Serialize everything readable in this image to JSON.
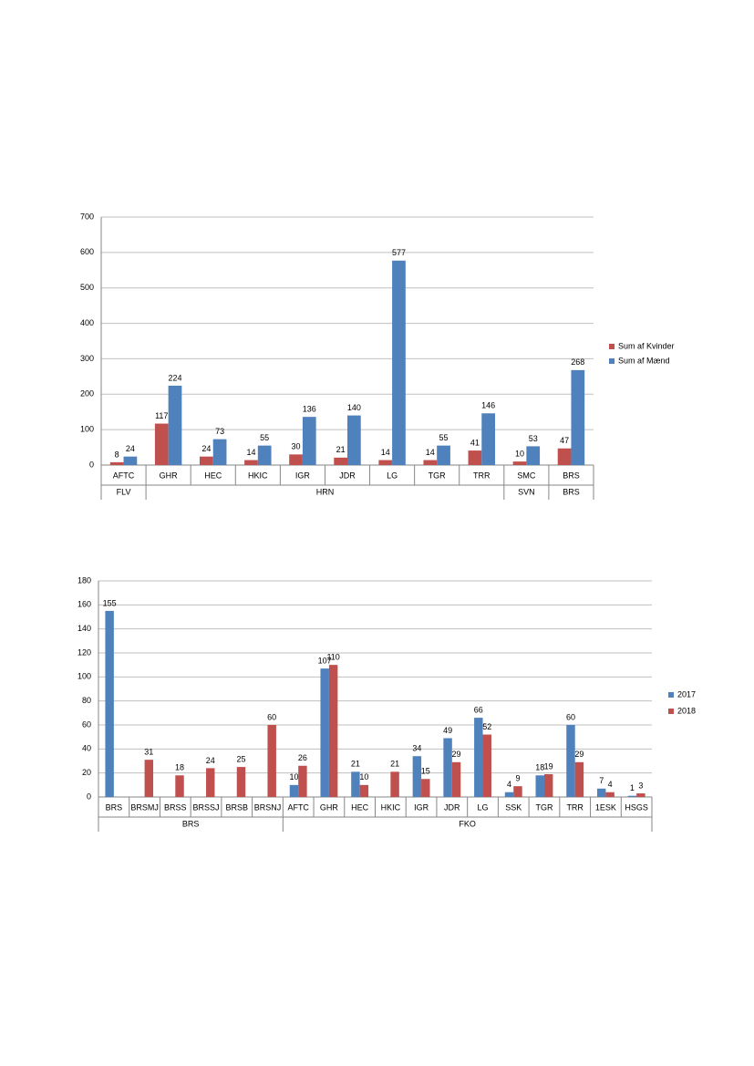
{
  "chart_data": [
    {
      "type": "bar",
      "groups": [
        {
          "label": "FLV",
          "categories": [
            "AFTC"
          ]
        },
        {
          "label": "HRN",
          "categories": [
            "GHR",
            "HEC",
            "HKIC",
            "IGR",
            "JDR",
            "LG",
            "TGR",
            "TRR"
          ]
        },
        {
          "label": "SVN",
          "categories": [
            "SMC"
          ]
        },
        {
          "label": "BRS",
          "categories": [
            "BRS"
          ]
        }
      ],
      "series": [
        {
          "name": "Sum af Kvinder",
          "color": "#c0504d",
          "values": [
            8,
            117,
            24,
            14,
            30,
            21,
            14,
            14,
            41,
            10,
            47
          ]
        },
        {
          "name": "Sum af Mænd",
          "color": "#4f81bd",
          "values": [
            24,
            224,
            73,
            55,
            136,
            140,
            577,
            55,
            146,
            53,
            268
          ]
        }
      ],
      "ylim": [
        0,
        700
      ],
      "yticks": [
        0,
        100,
        200,
        300,
        400,
        500,
        600,
        700
      ],
      "grid": true,
      "legend": "right"
    },
    {
      "type": "bar",
      "groups": [
        {
          "label": "BRS",
          "categories": [
            "BRS",
            "BRSMJ",
            "BRSS",
            "BRSSJ",
            "BRSB",
            "BRSNJ"
          ]
        },
        {
          "label": "FKO",
          "categories": [
            "AFTC",
            "GHR",
            "HEC",
            "HKIC",
            "IGR",
            "JDR",
            "LG",
            "SSK",
            "TGR",
            "TRR",
            "1ESK",
            "HSGS"
          ]
        }
      ],
      "series": [
        {
          "name": "2017",
          "color": "#4f81bd",
          "values": [
            155,
            null,
            null,
            null,
            null,
            null,
            10,
            107,
            21,
            null,
            34,
            49,
            66,
            4,
            18,
            60,
            7,
            1
          ]
        },
        {
          "name": "2018",
          "color": "#c0504d",
          "values": [
            null,
            31,
            18,
            24,
            25,
            60,
            26,
            110,
            10,
            21,
            15,
            29,
            52,
            9,
            19,
            29,
            4,
            3
          ]
        }
      ],
      "ylim": [
        0,
        180
      ],
      "yticks": [
        0,
        20,
        40,
        60,
        80,
        100,
        120,
        140,
        160,
        180
      ],
      "grid": true,
      "legend": "right"
    }
  ]
}
